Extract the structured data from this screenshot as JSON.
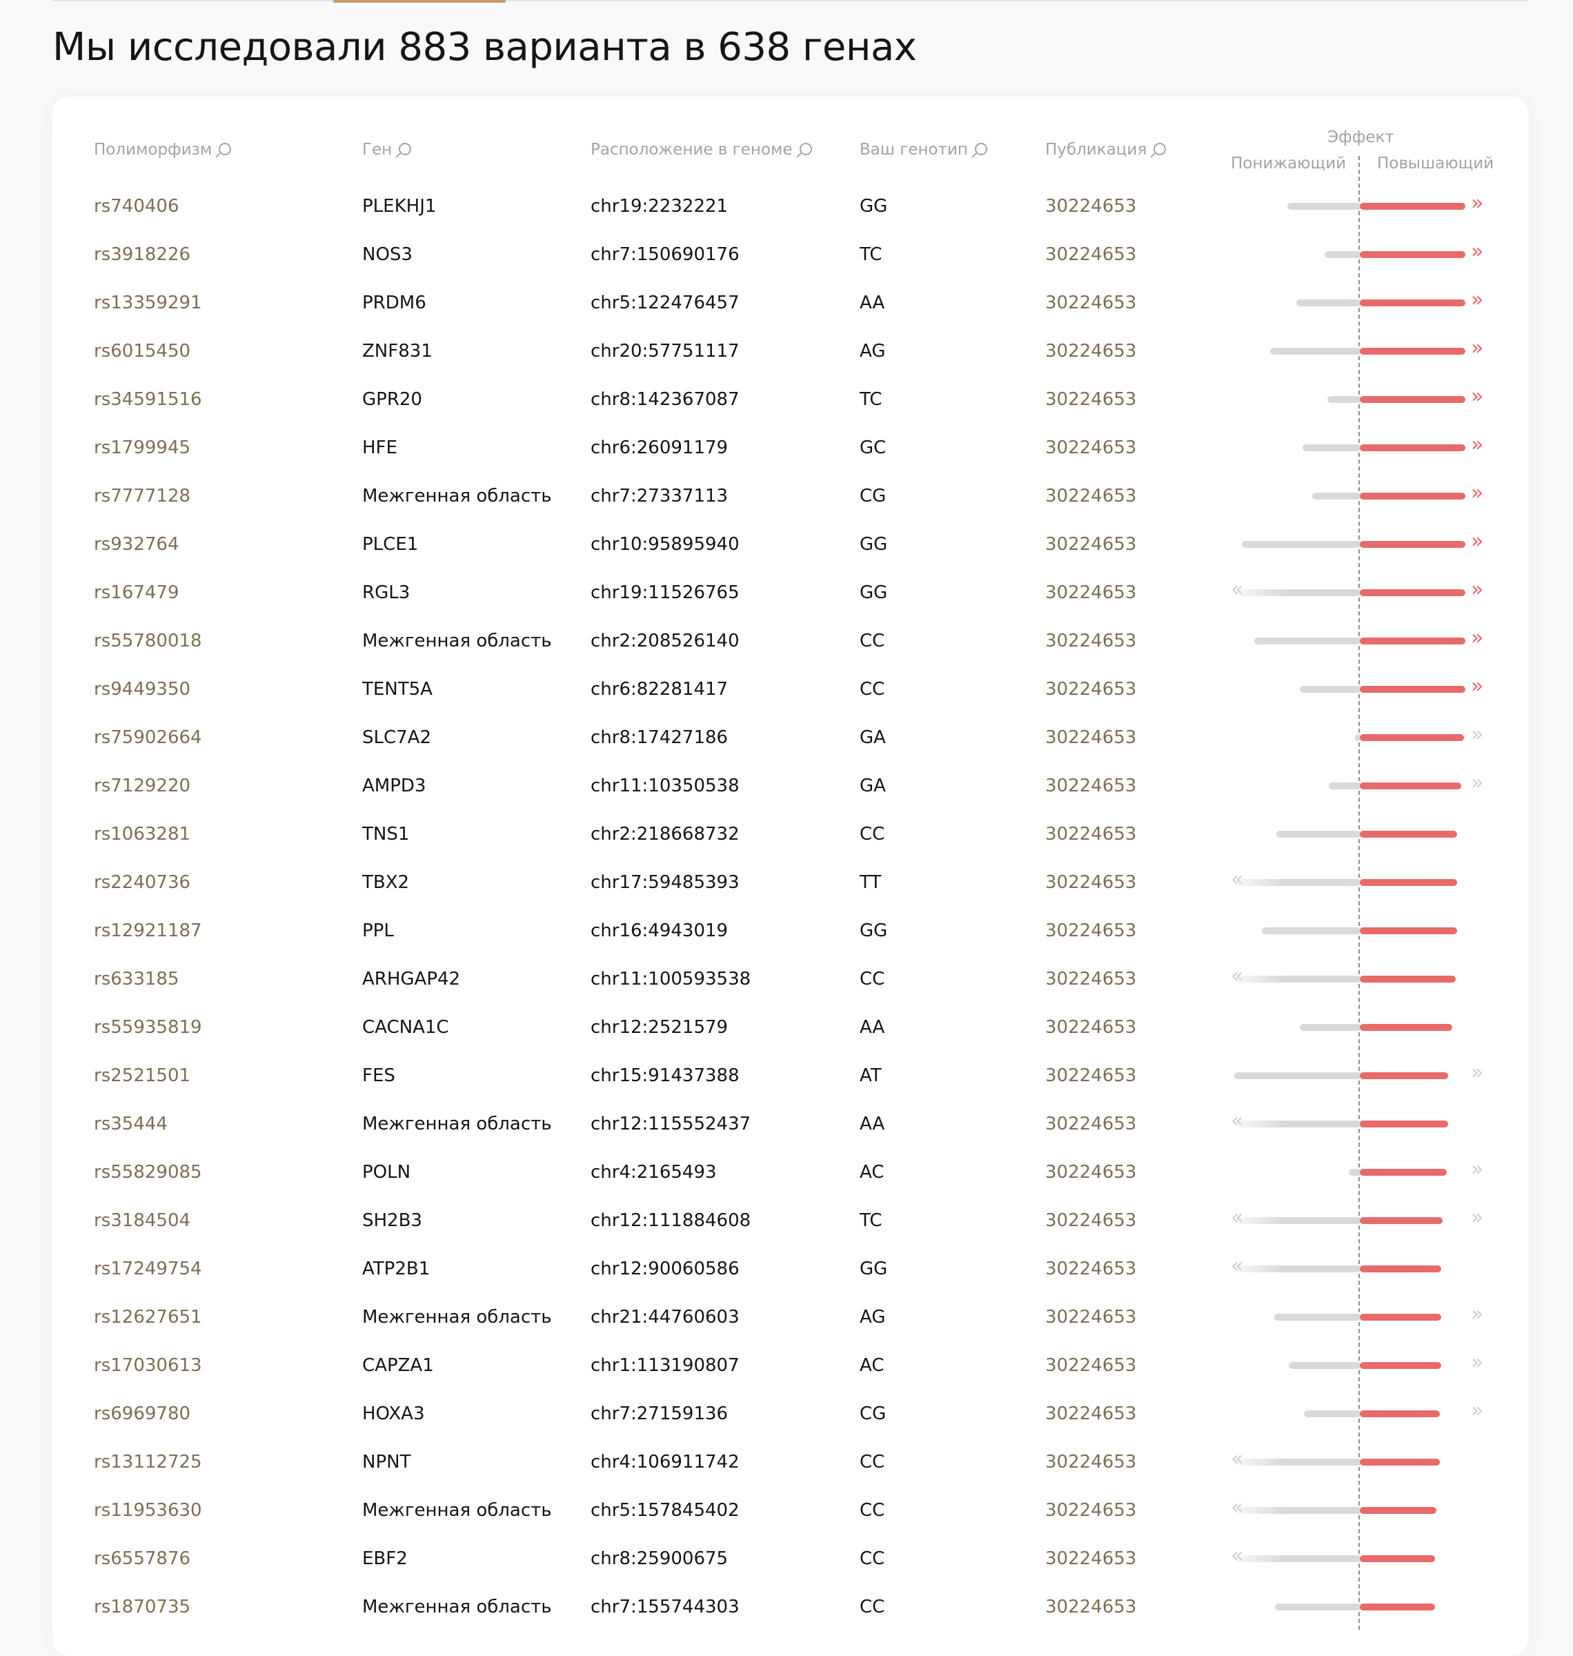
{
  "page": {
    "title": "Мы исследовали 883 варианта в 638 генах"
  },
  "table": {
    "headers": {
      "polymorphism": "Полиморфизм",
      "gene": "Ген",
      "location": "Расположение в геноме",
      "genotype": "Ваш генотип",
      "publication": "Публикация",
      "effect": "Эффект",
      "effect_decreasing": "Понижающий",
      "effect_increasing": "Повышающий"
    },
    "rows": [
      {
        "rs": "rs740406",
        "gene": "PLEKHJ1",
        "location": "chr19:2232221",
        "genotype": "GG",
        "publication": "30224653",
        "neg": 0.57,
        "pos": 0.73,
        "left_arrow": "",
        "right_arrow": "strong"
      },
      {
        "rs": "rs3918226",
        "gene": "NOS3",
        "location": "chr7:150690176",
        "genotype": "TC",
        "publication": "30224653",
        "neg": 0.27,
        "pos": 0.73,
        "left_arrow": "",
        "right_arrow": "strong"
      },
      {
        "rs": "rs13359291",
        "gene": "PRDM6",
        "location": "chr5:122476457",
        "genotype": "AA",
        "publication": "30224653",
        "neg": 0.5,
        "pos": 0.73,
        "left_arrow": "",
        "right_arrow": "strong"
      },
      {
        "rs": "rs6015450",
        "gene": "ZNF831",
        "location": "chr20:57751117",
        "genotype": "AG",
        "publication": "30224653",
        "neg": 0.71,
        "pos": 0.73,
        "left_arrow": "",
        "right_arrow": "strong"
      },
      {
        "rs": "rs34591516",
        "gene": "GPR20",
        "location": "chr8:142367087",
        "genotype": "TC",
        "publication": "30224653",
        "neg": 0.25,
        "pos": 0.73,
        "left_arrow": "",
        "right_arrow": "strong"
      },
      {
        "rs": "rs1799945",
        "gene": "HFE",
        "location": "chr6:26091179",
        "genotype": "GC",
        "publication": "30224653",
        "neg": 0.45,
        "pos": 0.73,
        "left_arrow": "",
        "right_arrow": "strong"
      },
      {
        "rs": "rs7777128",
        "gene": "Межгенная область",
        "location": "chr7:27337113",
        "genotype": "CG",
        "publication": "30224653",
        "neg": 0.37,
        "pos": 0.73,
        "left_arrow": "",
        "right_arrow": "strong"
      },
      {
        "rs": "rs932764",
        "gene": "PLCE1",
        "location": "chr10:95895940",
        "genotype": "GG",
        "publication": "30224653",
        "neg": 0.94,
        "pos": 0.73,
        "left_arrow": "",
        "right_arrow": "strong"
      },
      {
        "rs": "rs167479",
        "gene": "RGL3",
        "location": "chr19:11526765",
        "genotype": "GG",
        "publication": "30224653",
        "neg": 1.0,
        "pos": 0.73,
        "left_arrow": "weak",
        "right_arrow": "strong"
      },
      {
        "rs": "rs55780018",
        "gene": "Межгенная область",
        "location": "chr2:208526140",
        "genotype": "CC",
        "publication": "30224653",
        "neg": 0.84,
        "pos": 0.73,
        "left_arrow": "",
        "right_arrow": "strong"
      },
      {
        "rs": "rs9449350",
        "gene": "TENT5A",
        "location": "chr6:82281417",
        "genotype": "CC",
        "publication": "30224653",
        "neg": 0.47,
        "pos": 0.73,
        "left_arrow": "",
        "right_arrow": "strong"
      },
      {
        "rs": "rs75902664",
        "gene": "SLC7A2",
        "location": "chr8:17427186",
        "genotype": "GA",
        "publication": "30224653",
        "neg": 0.03,
        "pos": 0.72,
        "left_arrow": "",
        "right_arrow": "weak"
      },
      {
        "rs": "rs7129220",
        "gene": "AMPD3",
        "location": "chr11:10350538",
        "genotype": "GA",
        "publication": "30224653",
        "neg": 0.24,
        "pos": 0.7,
        "left_arrow": "",
        "right_arrow": "weak"
      },
      {
        "rs": "rs1063281",
        "gene": "TNS1",
        "location": "chr2:218668732",
        "genotype": "CC",
        "publication": "30224653",
        "neg": 0.66,
        "pos": 0.67,
        "left_arrow": "",
        "right_arrow": ""
      },
      {
        "rs": "rs2240736",
        "gene": "TBX2",
        "location": "chr17:59485393",
        "genotype": "TT",
        "publication": "30224653",
        "neg": 1.0,
        "pos": 0.67,
        "left_arrow": "weak",
        "right_arrow": ""
      },
      {
        "rs": "rs12921187",
        "gene": "PPL",
        "location": "chr16:4943019",
        "genotype": "GG",
        "publication": "30224653",
        "neg": 0.78,
        "pos": 0.67,
        "left_arrow": "",
        "right_arrow": ""
      },
      {
        "rs": "rs633185",
        "gene": "ARHGAP42",
        "location": "chr11:100593538",
        "genotype": "CC",
        "publication": "30224653",
        "neg": 1.0,
        "pos": 0.66,
        "left_arrow": "weak",
        "right_arrow": ""
      },
      {
        "rs": "rs55935819",
        "gene": "CACNA1C",
        "location": "chr12:2521579",
        "genotype": "AA",
        "publication": "30224653",
        "neg": 0.47,
        "pos": 0.64,
        "left_arrow": "",
        "right_arrow": ""
      },
      {
        "rs": "rs2521501",
        "gene": "FES",
        "location": "chr15:91437388",
        "genotype": "AT",
        "publication": "30224653",
        "neg": 1.0,
        "pos": 0.61,
        "left_arrow": "",
        "right_arrow": "weak"
      },
      {
        "rs": "rs35444",
        "gene": "Межгенная область",
        "location": "chr12:115552437",
        "genotype": "AA",
        "publication": "30224653",
        "neg": 1.0,
        "pos": 0.61,
        "left_arrow": "weak",
        "right_arrow": ""
      },
      {
        "rs": "rs55829085",
        "gene": "POLN",
        "location": "chr4:2165493",
        "genotype": "AC",
        "publication": "30224653",
        "neg": 0.08,
        "pos": 0.6,
        "left_arrow": "",
        "right_arrow": "weak"
      },
      {
        "rs": "rs3184504",
        "gene": "SH2B3",
        "location": "chr12:111884608",
        "genotype": "TC",
        "publication": "30224653",
        "neg": 1.0,
        "pos": 0.57,
        "left_arrow": "weak",
        "right_arrow": "weak"
      },
      {
        "rs": "rs17249754",
        "gene": "ATP2B1",
        "location": "chr12:90060586",
        "genotype": "GG",
        "publication": "30224653",
        "neg": 1.0,
        "pos": 0.56,
        "left_arrow": "weak",
        "right_arrow": ""
      },
      {
        "rs": "rs12627651",
        "gene": "Межгенная область",
        "location": "chr21:44760603",
        "genotype": "AG",
        "publication": "30224653",
        "neg": 0.68,
        "pos": 0.56,
        "left_arrow": "",
        "right_arrow": "weak"
      },
      {
        "rs": "rs17030613",
        "gene": "CAPZA1",
        "location": "chr1:113190807",
        "genotype": "AC",
        "publication": "30224653",
        "neg": 0.56,
        "pos": 0.56,
        "left_arrow": "",
        "right_arrow": "weak"
      },
      {
        "rs": "rs6969780",
        "gene": "HOXA3",
        "location": "chr7:27159136",
        "genotype": "CG",
        "publication": "30224653",
        "neg": 0.44,
        "pos": 0.55,
        "left_arrow": "",
        "right_arrow": "weak"
      },
      {
        "rs": "rs13112725",
        "gene": "NPNT",
        "location": "chr4:106911742",
        "genotype": "CC",
        "publication": "30224653",
        "neg": 1.0,
        "pos": 0.55,
        "left_arrow": "weak",
        "right_arrow": ""
      },
      {
        "rs": "rs11953630",
        "gene": "Межгенная область",
        "location": "chr5:157845402",
        "genotype": "CC",
        "publication": "30224653",
        "neg": 1.0,
        "pos": 0.53,
        "left_arrow": "weak",
        "right_arrow": ""
      },
      {
        "rs": "rs6557876",
        "gene": "EBF2",
        "location": "chr8:25900675",
        "genotype": "CC",
        "publication": "30224653",
        "neg": 1.0,
        "pos": 0.52,
        "left_arrow": "weak",
        "right_arrow": ""
      },
      {
        "rs": "rs1870735",
        "gene": "Межгенная область",
        "location": "chr7:155744303",
        "genotype": "CC",
        "publication": "30224653",
        "neg": 0.67,
        "pos": 0.52,
        "left_arrow": "",
        "right_arrow": ""
      }
    ]
  },
  "icons": {
    "column_search": "magnifier-icon",
    "strong_increase": "double-chevron-right-icon",
    "more_decrease": "double-chevron-left-icon"
  },
  "colors": {
    "accent_link": "#7d6f55",
    "increase_bar": "#e86a6a",
    "decrease_bar": "#d9d9d9",
    "tab_indicator": "#c69a6b"
  }
}
